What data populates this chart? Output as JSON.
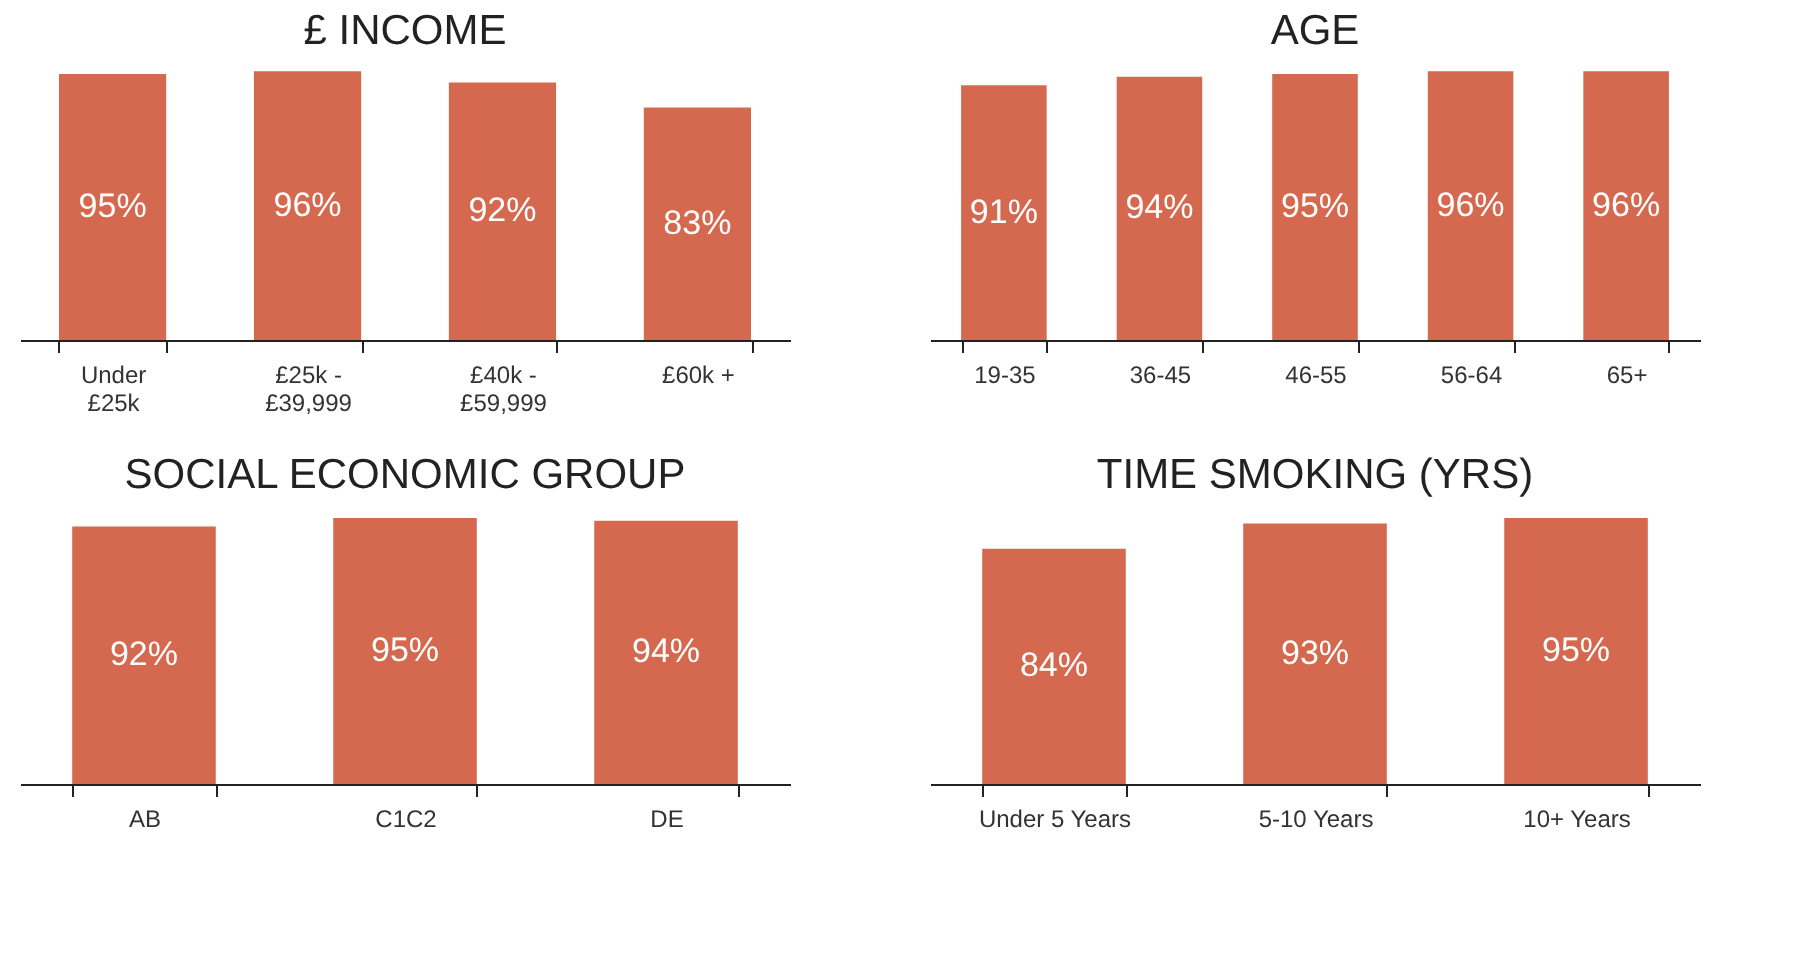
{
  "chart_data": [
    {
      "type": "bar",
      "title": "£ INCOME",
      "categories": [
        "Under\n£25k",
        "£25k -\n£39,999",
        "£40k -\n£59,999",
        "£60k +"
      ],
      "values": [
        95,
        96,
        92,
        83
      ],
      "value_labels": [
        "95%",
        "96%",
        "92%",
        "83%"
      ],
      "color": "#d4694f",
      "tick_labels": "x"
    },
    {
      "type": "bar",
      "title": "AGE",
      "categories": [
        "19-35",
        "36-45",
        "46-55",
        "56-64",
        "65+"
      ],
      "values": [
        91,
        94,
        95,
        96,
        96
      ],
      "value_labels": [
        "91%",
        "94%",
        "95%",
        "96%",
        "96%"
      ],
      "color": "#d4694f",
      "tick_labels": "x"
    },
    {
      "type": "bar",
      "title": "SOCIAL ECONOMIC GROUP",
      "categories": [
        "AB",
        "C1C2",
        "DE"
      ],
      "values": [
        92,
        95,
        94
      ],
      "value_labels": [
        "92%",
        "95%",
        "94%"
      ],
      "color": "#d4694f",
      "tick_labels": "x"
    },
    {
      "type": "bar",
      "title": "TIME SMOKING (YRS)",
      "categories": [
        "Under 5 Years",
        "5-10 Years",
        "10+ Years"
      ],
      "values": [
        84,
        93,
        95
      ],
      "value_labels": [
        "84%",
        "93%",
        "95%"
      ],
      "color": "#d4694f",
      "tick_labels": "x"
    }
  ]
}
